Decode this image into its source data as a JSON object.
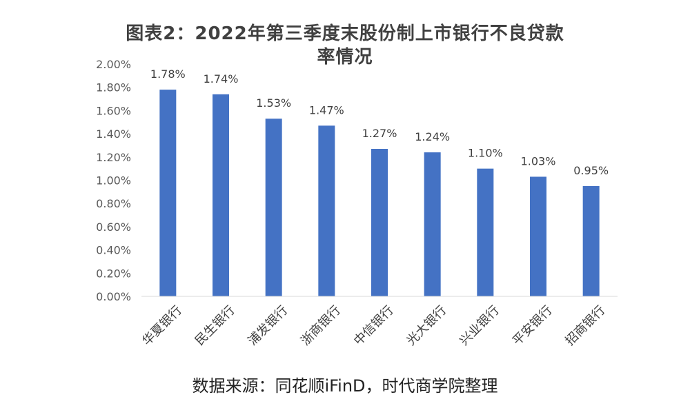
{
  "chart_data": {
    "type": "bar",
    "title_line1": "图表2：2022年第三季度末股份制上市银行不良贷款",
    "title_line2": "率情况",
    "categories": [
      "华夏银行",
      "民生银行",
      "浦发银行",
      "浙商银行",
      "中信银行",
      "光大银行",
      "兴业银行",
      "平安银行",
      "招商银行"
    ],
    "values": [
      1.78,
      1.74,
      1.53,
      1.47,
      1.27,
      1.24,
      1.1,
      1.03,
      0.95
    ],
    "data_labels": [
      "1.78%",
      "1.74%",
      "1.53%",
      "1.47%",
      "1.27%",
      "1.24%",
      "1.10%",
      "1.03%",
      "0.95%"
    ],
    "ylim": [
      0,
      2.0
    ],
    "y_ticks": [
      0,
      0.2,
      0.4,
      0.6,
      0.8,
      1.0,
      1.2,
      1.4,
      1.6,
      1.8,
      2.0
    ],
    "y_tick_labels": [
      "0.00%",
      "0.20%",
      "0.40%",
      "0.60%",
      "0.80%",
      "1.00%",
      "1.20%",
      "1.40%",
      "1.60%",
      "1.80%",
      "2.00%"
    ],
    "bar_color": "#4472C4",
    "grid": false
  },
  "source": "数据来源：同花顺iFinD，时代商学院整理"
}
